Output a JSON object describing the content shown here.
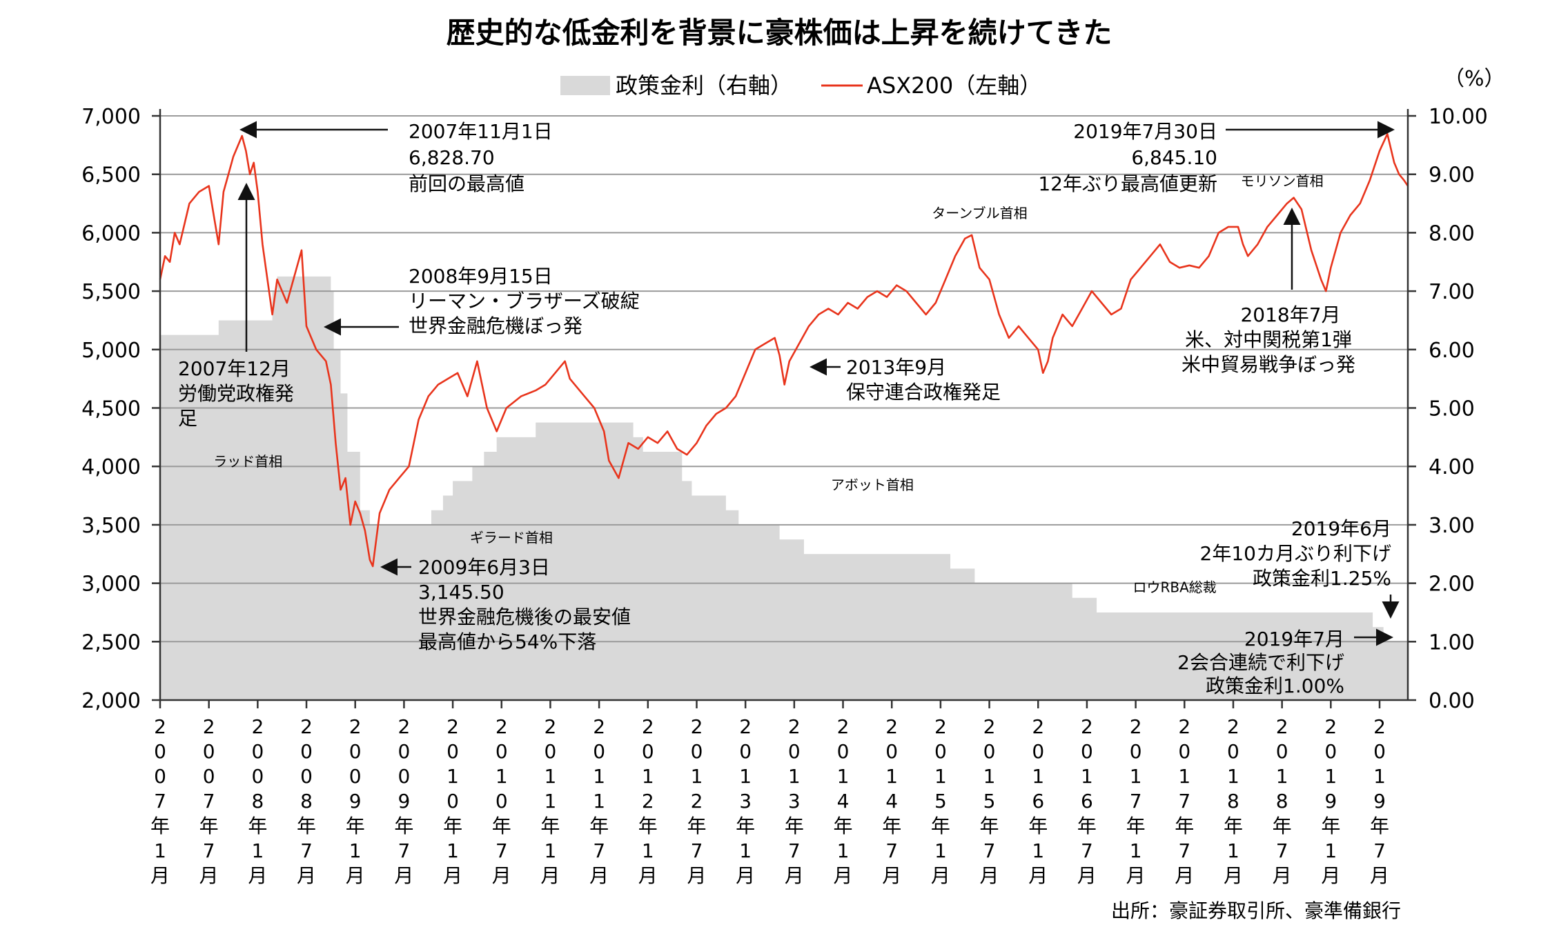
{
  "title": "歴史的な低金利を背景に豪株価は上昇を続けてきた",
  "legend": {
    "policy_rate": "政策金利（右軸）",
    "asx200": "ASX200（左軸）"
  },
  "right_unit": "（%）",
  "source": "出所：豪証券取引所、豪準備銀行",
  "colors": {
    "line": "#e8341c",
    "area": "#d9d9d9",
    "grid": "#9a9a9a",
    "text": "#111111"
  },
  "chart_data": {
    "type": "line+area",
    "title": "歴史的な低金利を背景に豪株価は上昇を続けてきた",
    "left_axis": {
      "ylim": [
        2000,
        7000
      ],
      "ticks": [
        "2,000",
        "2,500",
        "3,000",
        "3,500",
        "4,000",
        "4,500",
        "5,000",
        "5,500",
        "6,000",
        "6,500",
        "7,000"
      ]
    },
    "right_axis": {
      "ylim": [
        0,
        10
      ],
      "ticks": [
        "0.00",
        "1.00",
        "2.00",
        "3.00",
        "4.00",
        "5.00",
        "6.00",
        "7.00",
        "8.00",
        "9.00",
        "10.00"
      ]
    },
    "x_range": [
      2007.0,
      2019.79
    ],
    "x_ticks": [
      {
        "t": 2007.0,
        "label": "2007年1月"
      },
      {
        "t": 2007.5,
        "label": "2007年7月"
      },
      {
        "t": 2008.0,
        "label": "2008年1月"
      },
      {
        "t": 2008.5,
        "label": "2008年7月"
      },
      {
        "t": 2009.0,
        "label": "2009年1月"
      },
      {
        "t": 2009.5,
        "label": "2009年7月"
      },
      {
        "t": 2010.0,
        "label": "2010年1月"
      },
      {
        "t": 2010.5,
        "label": "2010年7月"
      },
      {
        "t": 2011.0,
        "label": "2011年1月"
      },
      {
        "t": 2011.5,
        "label": "2011年7月"
      },
      {
        "t": 2012.0,
        "label": "2012年1月"
      },
      {
        "t": 2012.5,
        "label": "2012年7月"
      },
      {
        "t": 2013.0,
        "label": "2013年1月"
      },
      {
        "t": 2013.5,
        "label": "2013年7月"
      },
      {
        "t": 2014.0,
        "label": "2014年1月"
      },
      {
        "t": 2014.5,
        "label": "2014年7月"
      },
      {
        "t": 2015.0,
        "label": "2015年1月"
      },
      {
        "t": 2015.5,
        "label": "2015年7月"
      },
      {
        "t": 2016.0,
        "label": "2016年1月"
      },
      {
        "t": 2016.5,
        "label": "2016年7月"
      },
      {
        "t": 2017.0,
        "label": "2017年1月"
      },
      {
        "t": 2017.5,
        "label": "2017年7月"
      },
      {
        "t": 2018.0,
        "label": "2018年1月"
      },
      {
        "t": 2018.5,
        "label": "2018年7月"
      },
      {
        "t": 2019.0,
        "label": "2019年1月"
      },
      {
        "t": 2019.5,
        "label": "2019年7月"
      }
    ],
    "series": [
      {
        "name": "政策金利（右軸）",
        "axis": "right",
        "type": "step-area",
        "points": [
          [
            2007.0,
            6.25
          ],
          [
            2007.6,
            6.5
          ],
          [
            2008.15,
            7.0
          ],
          [
            2008.2,
            7.25
          ],
          [
            2008.75,
            7.0
          ],
          [
            2008.78,
            6.0
          ],
          [
            2008.85,
            5.25
          ],
          [
            2008.92,
            4.25
          ],
          [
            2009.05,
            3.25
          ],
          [
            2009.15,
            3.0
          ],
          [
            2009.25,
            3.0
          ],
          [
            2009.55,
            3.0
          ],
          [
            2009.78,
            3.25
          ],
          [
            2009.9,
            3.5
          ],
          [
            2010.0,
            3.75
          ],
          [
            2010.2,
            4.0
          ],
          [
            2010.32,
            4.25
          ],
          [
            2010.45,
            4.5
          ],
          [
            2010.85,
            4.75
          ],
          [
            2011.85,
            4.5
          ],
          [
            2011.95,
            4.25
          ],
          [
            2012.35,
            3.75
          ],
          [
            2012.45,
            3.5
          ],
          [
            2012.8,
            3.25
          ],
          [
            2012.93,
            3.0
          ],
          [
            2013.35,
            2.75
          ],
          [
            2013.6,
            2.5
          ],
          [
            2015.1,
            2.25
          ],
          [
            2015.35,
            2.0
          ],
          [
            2016.35,
            1.75
          ],
          [
            2016.6,
            1.5
          ],
          [
            2019.43,
            1.25
          ],
          [
            2019.54,
            1.0
          ],
          [
            2019.79,
            1.0
          ]
        ]
      },
      {
        "name": "ASX200（左軸）",
        "axis": "left",
        "type": "line",
        "points": [
          [
            2007.0,
            5600
          ],
          [
            2007.05,
            5800
          ],
          [
            2007.1,
            5750
          ],
          [
            2007.15,
            6000
          ],
          [
            2007.2,
            5900
          ],
          [
            2007.3,
            6250
          ],
          [
            2007.4,
            6350
          ],
          [
            2007.5,
            6400
          ],
          [
            2007.55,
            6150
          ],
          [
            2007.6,
            5900
          ],
          [
            2007.65,
            6350
          ],
          [
            2007.7,
            6500
          ],
          [
            2007.75,
            6650
          ],
          [
            2007.84,
            6828.7
          ],
          [
            2007.88,
            6700
          ],
          [
            2007.92,
            6500
          ],
          [
            2007.96,
            6600
          ],
          [
            2008.0,
            6350
          ],
          [
            2008.05,
            5900
          ],
          [
            2008.1,
            5600
          ],
          [
            2008.15,
            5300
          ],
          [
            2008.2,
            5600
          ],
          [
            2008.3,
            5400
          ],
          [
            2008.4,
            5700
          ],
          [
            2008.45,
            5850
          ],
          [
            2008.5,
            5200
          ],
          [
            2008.55,
            5100
          ],
          [
            2008.6,
            5000
          ],
          [
            2008.7,
            4900
          ],
          [
            2008.75,
            4700
          ],
          [
            2008.8,
            4200
          ],
          [
            2008.85,
            3800
          ],
          [
            2008.9,
            3900
          ],
          [
            2008.95,
            3500
          ],
          [
            2009.0,
            3700
          ],
          [
            2009.05,
            3600
          ],
          [
            2009.1,
            3450
          ],
          [
            2009.15,
            3200
          ],
          [
            2009.18,
            3145.5
          ],
          [
            2009.25,
            3600
          ],
          [
            2009.35,
            3800
          ],
          [
            2009.45,
            3900
          ],
          [
            2009.55,
            4000
          ],
          [
            2009.65,
            4400
          ],
          [
            2009.75,
            4600
          ],
          [
            2009.85,
            4700
          ],
          [
            2009.95,
            4750
          ],
          [
            2010.05,
            4800
          ],
          [
            2010.15,
            4600
          ],
          [
            2010.25,
            4900
          ],
          [
            2010.35,
            4500
          ],
          [
            2010.45,
            4300
          ],
          [
            2010.55,
            4500
          ],
          [
            2010.7,
            4600
          ],
          [
            2010.85,
            4650
          ],
          [
            2010.95,
            4700
          ],
          [
            2011.05,
            4800
          ],
          [
            2011.15,
            4900
          ],
          [
            2011.2,
            4750
          ],
          [
            2011.35,
            4600
          ],
          [
            2011.45,
            4500
          ],
          [
            2011.55,
            4300
          ],
          [
            2011.6,
            4050
          ],
          [
            2011.7,
            3900
          ],
          [
            2011.8,
            4200
          ],
          [
            2011.9,
            4150
          ],
          [
            2012.0,
            4250
          ],
          [
            2012.1,
            4200
          ],
          [
            2012.2,
            4300
          ],
          [
            2012.3,
            4150
          ],
          [
            2012.4,
            4100
          ],
          [
            2012.5,
            4200
          ],
          [
            2012.6,
            4350
          ],
          [
            2012.7,
            4450
          ],
          [
            2012.8,
            4500
          ],
          [
            2012.9,
            4600
          ],
          [
            2013.0,
            4800
          ],
          [
            2013.1,
            5000
          ],
          [
            2013.2,
            5050
          ],
          [
            2013.3,
            5100
          ],
          [
            2013.35,
            4950
          ],
          [
            2013.4,
            4700
          ],
          [
            2013.45,
            4900
          ],
          [
            2013.55,
            5050
          ],
          [
            2013.65,
            5200
          ],
          [
            2013.75,
            5300
          ],
          [
            2013.85,
            5350
          ],
          [
            2013.95,
            5300
          ],
          [
            2014.05,
            5400
          ],
          [
            2014.15,
            5350
          ],
          [
            2014.25,
            5450
          ],
          [
            2014.35,
            5500
          ],
          [
            2014.45,
            5450
          ],
          [
            2014.55,
            5550
          ],
          [
            2014.65,
            5500
          ],
          [
            2014.75,
            5400
          ],
          [
            2014.85,
            5300
          ],
          [
            2014.95,
            5400
          ],
          [
            2015.05,
            5600
          ],
          [
            2015.15,
            5800
          ],
          [
            2015.25,
            5950
          ],
          [
            2015.32,
            5980
          ],
          [
            2015.4,
            5700
          ],
          [
            2015.5,
            5600
          ],
          [
            2015.6,
            5300
          ],
          [
            2015.7,
            5100
          ],
          [
            2015.8,
            5200
          ],
          [
            2015.9,
            5100
          ],
          [
            2016.0,
            5000
          ],
          [
            2016.05,
            4800
          ],
          [
            2016.1,
            4900
          ],
          [
            2016.15,
            5100
          ],
          [
            2016.25,
            5300
          ],
          [
            2016.35,
            5200
          ],
          [
            2016.45,
            5350
          ],
          [
            2016.55,
            5500
          ],
          [
            2016.65,
            5400
          ],
          [
            2016.75,
            5300
          ],
          [
            2016.85,
            5350
          ],
          [
            2016.95,
            5600
          ],
          [
            2017.05,
            5700
          ],
          [
            2017.15,
            5800
          ],
          [
            2017.25,
            5900
          ],
          [
            2017.35,
            5750
          ],
          [
            2017.45,
            5700
          ],
          [
            2017.55,
            5720
          ],
          [
            2017.65,
            5700
          ],
          [
            2017.75,
            5800
          ],
          [
            2017.85,
            6000
          ],
          [
            2017.95,
            6050
          ],
          [
            2018.05,
            6050
          ],
          [
            2018.1,
            5900
          ],
          [
            2018.15,
            5800
          ],
          [
            2018.25,
            5900
          ],
          [
            2018.35,
            6050
          ],
          [
            2018.45,
            6150
          ],
          [
            2018.55,
            6250
          ],
          [
            2018.62,
            6300
          ],
          [
            2018.7,
            6200
          ],
          [
            2018.8,
            5850
          ],
          [
            2018.9,
            5600
          ],
          [
            2018.95,
            5500
          ],
          [
            2019.0,
            5700
          ],
          [
            2019.1,
            6000
          ],
          [
            2019.2,
            6150
          ],
          [
            2019.3,
            6250
          ],
          [
            2019.4,
            6450
          ],
          [
            2019.5,
            6700
          ],
          [
            2019.58,
            6845.1
          ],
          [
            2019.65,
            6600
          ],
          [
            2019.7,
            6500
          ],
          [
            2019.75,
            6450
          ],
          [
            2019.79,
            6400
          ]
        ]
      }
    ],
    "region_labels": [
      {
        "t": 2007.9,
        "y": 4.0,
        "text": "ラッド首相"
      },
      {
        "t": 2010.6,
        "y": 2.7,
        "text": "ギラード首相"
      },
      {
        "t": 2014.3,
        "y": 3.6,
        "text": "アボット首相"
      },
      {
        "t": 2015.4,
        "y": 8.25,
        "text": "ターンブル首相"
      },
      {
        "t": 2018.5,
        "y": 8.8,
        "text": "モリソン首相"
      },
      {
        "t": 2017.4,
        "y": 1.85,
        "text": "ロウRBA総裁"
      }
    ],
    "annotations": [
      {
        "lines": [
          "2007年11月1日",
          "6,828.70",
          "前回の最高値"
        ]
      },
      {
        "lines": [
          "2007年12月",
          "労働党政権発",
          "足"
        ]
      },
      {
        "lines": [
          "2008年9月15日",
          "リーマン・ブラザーズ破綻",
          "世界金融危機ぼっ発"
        ]
      },
      {
        "lines": [
          "2009年6月3日",
          "3,145.50",
          "世界金融危機後の最安値",
          "最高値から54%下落"
        ]
      },
      {
        "lines": [
          "2013年9月",
          "保守連合政権発足"
        ]
      },
      {
        "lines": [
          "2019年7月30日",
          "6,845.10",
          "12年ぶり最高値更新"
        ]
      },
      {
        "lines": [
          "2018年7月",
          "米、対中関税第1弾",
          "米中貿易戦争ぼっ発"
        ]
      },
      {
        "lines": [
          "2019年6月",
          "2年10カ月ぶり利下げ",
          "政策金利1.25%"
        ]
      },
      {
        "lines": [
          "2019年7月",
          "2会合連続で利下げ",
          "政策金利1.00%"
        ]
      }
    ]
  }
}
